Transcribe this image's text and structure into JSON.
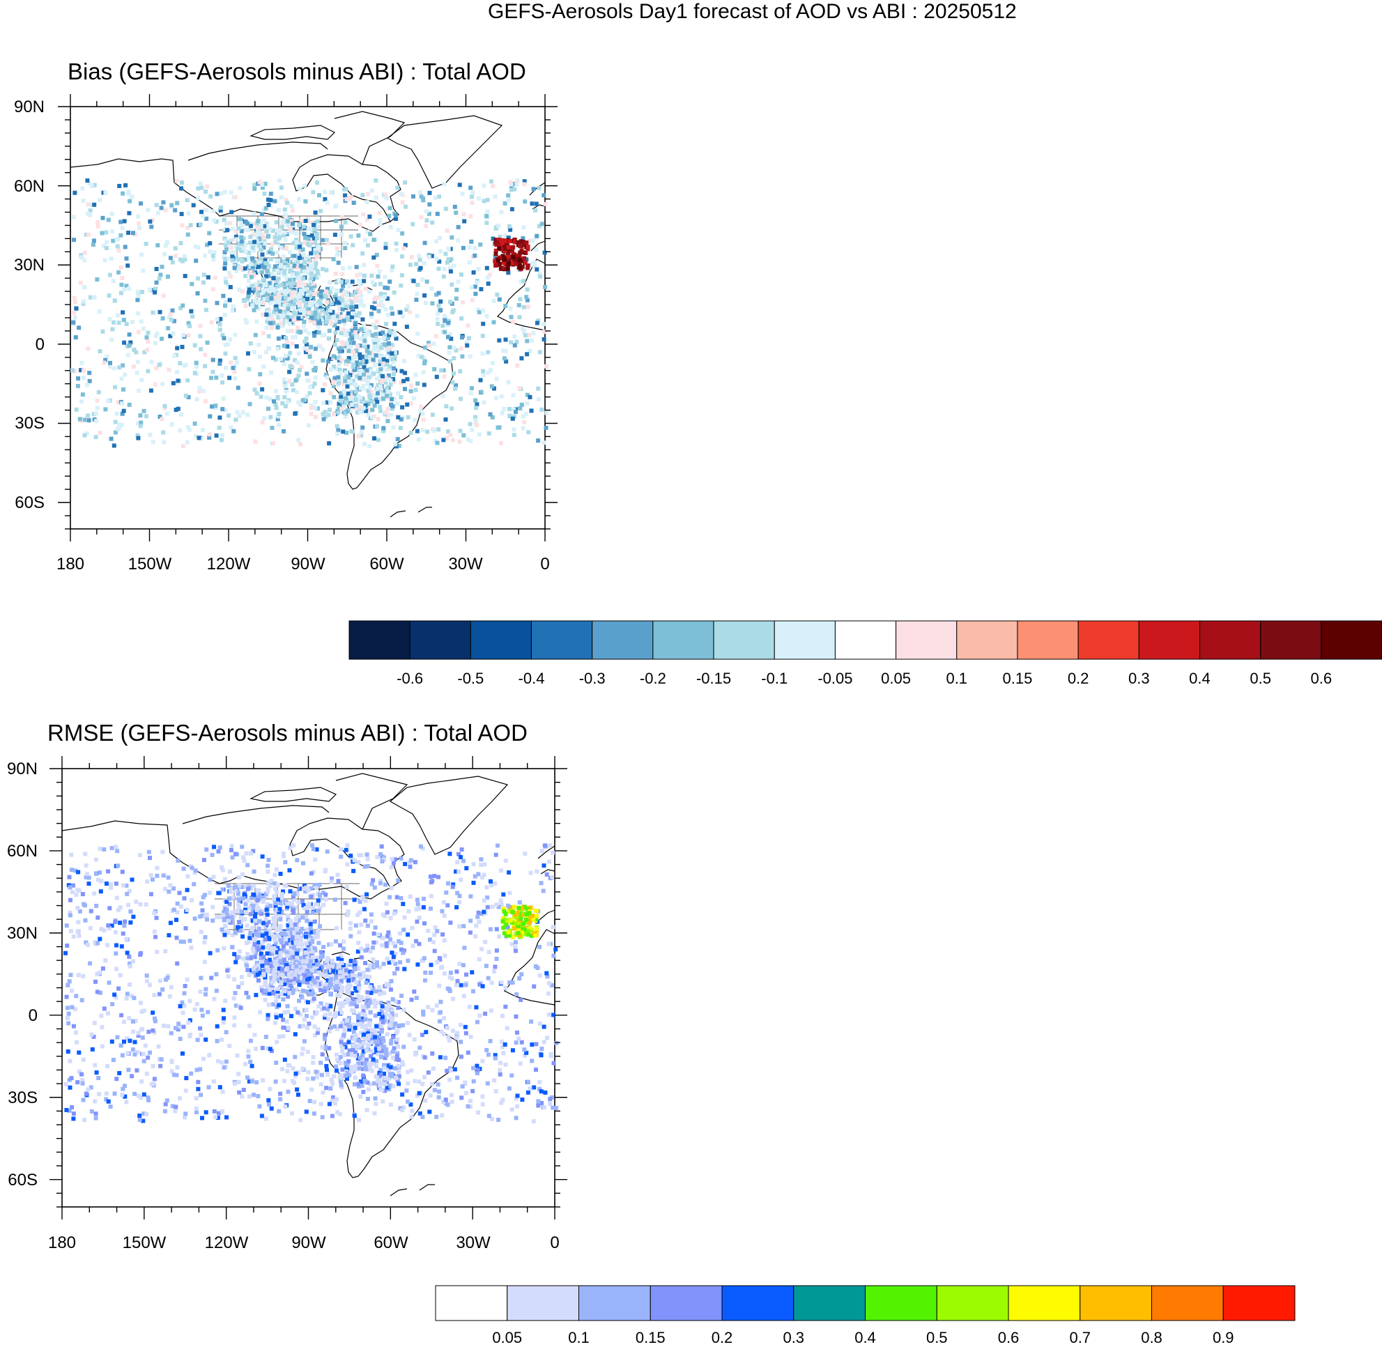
{
  "figure": {
    "title": "GEFS-Aerosols Day1 forecast of AOD vs ABI : 20250512"
  },
  "panels": [
    {
      "id": "bias",
      "title": "Bias (GEFS-Aerosols minus ABI) : Total AOD",
      "lat_ticks": [
        "90N",
        "60N",
        "30N",
        "0",
        "30S",
        "60S"
      ],
      "lon_ticks": [
        "180",
        "150W",
        "120W",
        "90W",
        "60W",
        "30W",
        "0"
      ],
      "extent": {
        "lon": [
          -180,
          0
        ],
        "lat": [
          -70,
          90
        ]
      }
    },
    {
      "id": "rmse",
      "title": "RMSE (GEFS-Aerosols minus ABI) : Total AOD",
      "lat_ticks": [
        "90N",
        "60N",
        "30N",
        "0",
        "30S",
        "60S"
      ],
      "lon_ticks": [
        "180",
        "150W",
        "120W",
        "90W",
        "60W",
        "30W",
        "0"
      ],
      "extent": {
        "lon": [
          -180,
          0
        ],
        "lat": [
          -70,
          90
        ]
      }
    }
  ],
  "colorbars": {
    "bias": {
      "labels": [
        "-0.6",
        "-0.5",
        "-0.4",
        "-0.3",
        "-0.2",
        "-0.15",
        "-0.1",
        "-0.05",
        "0.05",
        "0.1",
        "0.15",
        "0.2",
        "0.3",
        "0.4",
        "0.5",
        "0.6"
      ],
      "colors": [
        "#081d46",
        "#08306b",
        "#08519c",
        "#2171b5",
        "#5aa0cd",
        "#7cbfd6",
        "#abdbe7",
        "#d8f0f9",
        "#ffffff",
        "#fde0e3",
        "#fbbbaa",
        "#fb9172",
        "#ef3b2c",
        "#cb181d",
        "#a50f15",
        "#7b0c12",
        "#5c0000"
      ]
    },
    "rmse": {
      "labels": [
        "0.05",
        "0.1",
        "0.15",
        "0.2",
        "0.3",
        "0.4",
        "0.5",
        "0.6",
        "0.7",
        "0.8",
        "0.9"
      ],
      "colors": [
        "#ffffff",
        "#d4dcfc",
        "#9ab4fb",
        "#8294fb",
        "#0a5bff",
        "#009797",
        "#52f200",
        "#9bfb00",
        "#fffb00",
        "#ffbe00",
        "#ff7a00",
        "#ff1a00"
      ]
    }
  }
}
